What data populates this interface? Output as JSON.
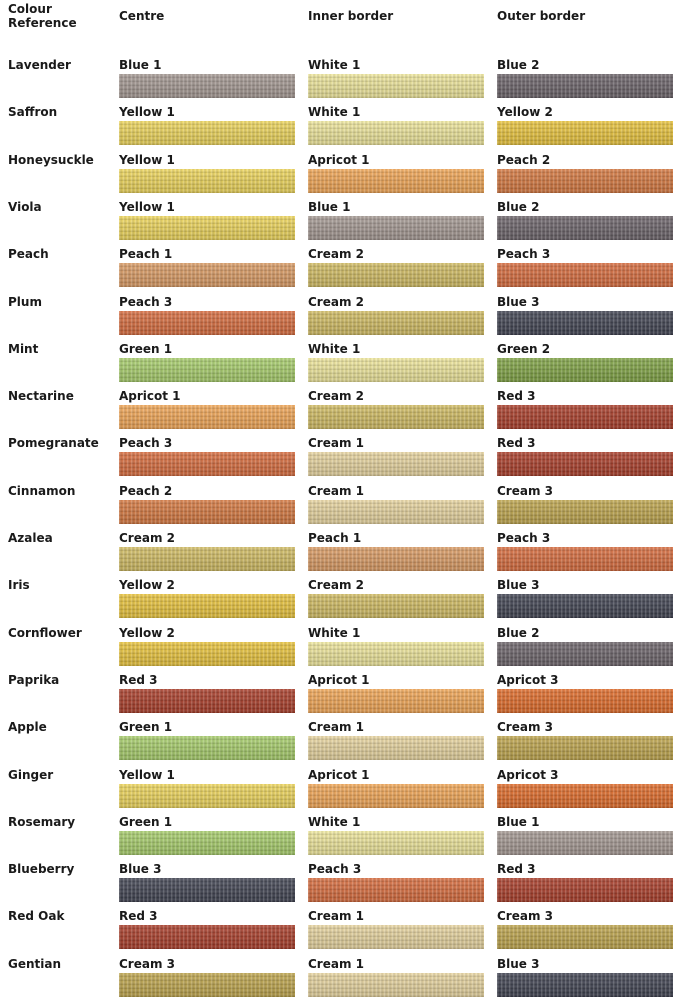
{
  "header": {
    "ref": "Colour\nReference",
    "centre": "Centre",
    "inner": "Inner border",
    "outer": "Outer border"
  },
  "palette": {
    "Blue 1": "#a39791",
    "Blue 2": "#6a6268",
    "Blue 3": "#3f4250",
    "White 1": "#ede59a",
    "Yellow 1": "#ecd45a",
    "Yellow 2": "#e8c33c",
    "Apricot 1": "#f0a555",
    "Apricot 3": "#df6a28",
    "Peach 1": "#d99a63",
    "Peach 2": "#d4773f",
    "Peach 3": "#d66b3d",
    "Cream 1": "#e6d39e",
    "Cream 2": "#d0bb62",
    "Cream 3": "#bda44c",
    "Green 1": "#a6cc6a",
    "Green 2": "#7ea143",
    "Red 3": "#a83c28"
  },
  "rows": [
    {
      "name": "Lavender",
      "centre": "Blue 1",
      "inner": "White 1",
      "outer": "Blue 2"
    },
    {
      "name": "Saffron",
      "centre": "Yellow 1",
      "inner": "White 1",
      "outer": "Yellow 2"
    },
    {
      "name": "Honeysuckle",
      "centre": "Yellow 1",
      "inner": "Apricot 1",
      "outer": "Peach 2"
    },
    {
      "name": "Viola",
      "centre": "Yellow 1",
      "inner": "Blue 1",
      "outer": "Blue 2"
    },
    {
      "name": "Peach",
      "centre": "Peach 1",
      "inner": "Cream 2",
      "outer": "Peach 3"
    },
    {
      "name": "Plum",
      "centre": "Peach 3",
      "inner": "Cream 2",
      "outer": "Blue 3"
    },
    {
      "name": "Mint",
      "centre": "Green 1",
      "inner": "White 1",
      "outer": "Green 2"
    },
    {
      "name": "Nectarine",
      "centre": "Apricot 1",
      "inner": "Cream 2",
      "outer": "Red 3"
    },
    {
      "name": "Pomegranate",
      "centre": "Peach 3",
      "inner": "Cream 1",
      "outer": "Red 3"
    },
    {
      "name": "Cinnamon",
      "centre": "Peach 2",
      "inner": "Cream 1",
      "outer": "Cream 3"
    },
    {
      "name": "Azalea",
      "centre": "Cream 2",
      "inner": "Peach 1",
      "outer": "Peach 3"
    },
    {
      "name": "Iris",
      "centre": "Yellow 2",
      "inner": "Cream 2",
      "outer": "Blue 3"
    },
    {
      "name": "Cornflower",
      "centre": "Yellow 2",
      "inner": "White 1",
      "outer": "Blue 2"
    },
    {
      "name": "Paprika",
      "centre": "Red 3",
      "inner": "Apricot 1",
      "outer": "Apricot 3"
    },
    {
      "name": "Apple",
      "centre": "Green 1",
      "inner": "Cream 1",
      "outer": "Cream 3"
    },
    {
      "name": "Ginger",
      "centre": "Yellow 1",
      "inner": "Apricot 1",
      "outer": "Apricot 3"
    },
    {
      "name": "Rosemary",
      "centre": "Green 1",
      "inner": "White 1",
      "outer": "Blue 1"
    },
    {
      "name": "Blueberry",
      "centre": "Blue 3",
      "inner": "Peach 3",
      "outer": "Red 3"
    },
    {
      "name": "Red Oak",
      "centre": "Red 3",
      "inner": "Cream 1",
      "outer": "Cream 3"
    },
    {
      "name": "Gentian",
      "centre": "Cream 3",
      "inner": "Cream 1",
      "outer": "Blue 3"
    }
  ]
}
